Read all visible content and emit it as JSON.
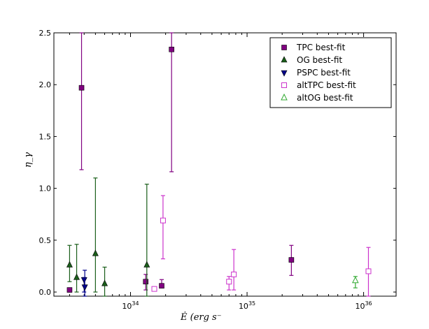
{
  "chart_data": {
    "type": "scatter",
    "xlabel": "Ė (erg s⁻",
    "ylabel": "η_γ",
    "xscale": "log",
    "xlim": [
      2.2e+33,
      1.9e+36
    ],
    "ylim": [
      -0.04,
      2.5
    ],
    "y_ticks": [
      0.0,
      0.5,
      1.0,
      1.5,
      2.0,
      2.5
    ],
    "y_tick_labels": [
      "0.0",
      "0.5",
      "1.0",
      "1.5",
      "2.0",
      "2.5"
    ],
    "x_ticks": [
      1e+34,
      1e+35,
      1e+36
    ],
    "x_tick_labels": [
      {
        "base": "10",
        "exp": "34"
      },
      {
        "base": "10",
        "exp": "35"
      },
      {
        "base": "10",
        "exp": "36"
      }
    ],
    "legend_position": "top-right",
    "series": [
      {
        "name": "TPC best-fit",
        "color": "#800080",
        "marker": "square-filled",
        "points": [
          {
            "x": 3e+33,
            "y": 0.02,
            "low": 0.02,
            "high": 0.02
          },
          {
            "x": 3.8e+33,
            "y": 1.97,
            "low": 1.18,
            "high": 2.5
          },
          {
            "x": 1.35e+34,
            "y": 0.1,
            "low": 0.02,
            "high": 0.17
          },
          {
            "x": 1.85e+34,
            "y": 0.06,
            "low": 0.06,
            "high": 0.12
          },
          {
            "x": 2.25e+34,
            "y": 2.34,
            "low": 1.16,
            "high": 2.5
          },
          {
            "x": 2.4e+35,
            "y": 0.31,
            "low": 0.16,
            "high": 0.45
          }
        ]
      },
      {
        "name": "OG best-fit",
        "color": "#1a5e1a",
        "marker": "triangle-up-filled",
        "points": [
          {
            "x": 3e+33,
            "y": 0.26,
            "low": 0.1,
            "high": 0.45
          },
          {
            "x": 3.45e+33,
            "y": 0.14,
            "low": 0.0,
            "high": 0.46
          },
          {
            "x": 5e+33,
            "y": 0.37,
            "low": 0.0,
            "high": 1.1
          },
          {
            "x": 6e+33,
            "y": 0.08,
            "low": -0.04,
            "high": 0.24
          },
          {
            "x": 1.38e+34,
            "y": 0.26,
            "low": -0.04,
            "high": 1.04
          }
        ]
      },
      {
        "name": "PSPC best-fit",
        "color": "#00008b",
        "marker": "triangle-down-filled",
        "points": [
          {
            "x": 4e+33,
            "y": 0.12,
            "low": 0.0,
            "high": 0.14
          },
          {
            "x": 4.05e+33,
            "y": 0.05,
            "low": -0.04,
            "high": 0.21
          }
        ]
      },
      {
        "name": "altTPC best-fit",
        "color": "#cc33cc",
        "marker": "square-open",
        "points": [
          {
            "x": 1.6e+34,
            "y": 0.03,
            "low": 0.01,
            "high": 0.04
          },
          {
            "x": 1.9e+34,
            "y": 0.69,
            "low": 0.32,
            "high": 0.93
          },
          {
            "x": 7e+34,
            "y": 0.1,
            "low": 0.02,
            "high": 0.15
          },
          {
            "x": 7.7e+34,
            "y": 0.17,
            "low": 0.02,
            "high": 0.41
          },
          {
            "x": 1.1e+36,
            "y": 0.2,
            "low": -0.04,
            "high": 0.43
          }
        ]
      },
      {
        "name": "altOG best-fit",
        "color": "#33aa33",
        "marker": "triangle-up-open",
        "points": [
          {
            "x": 8.5e+35,
            "y": 0.11,
            "low": 0.04,
            "high": 0.15
          }
        ]
      }
    ]
  }
}
